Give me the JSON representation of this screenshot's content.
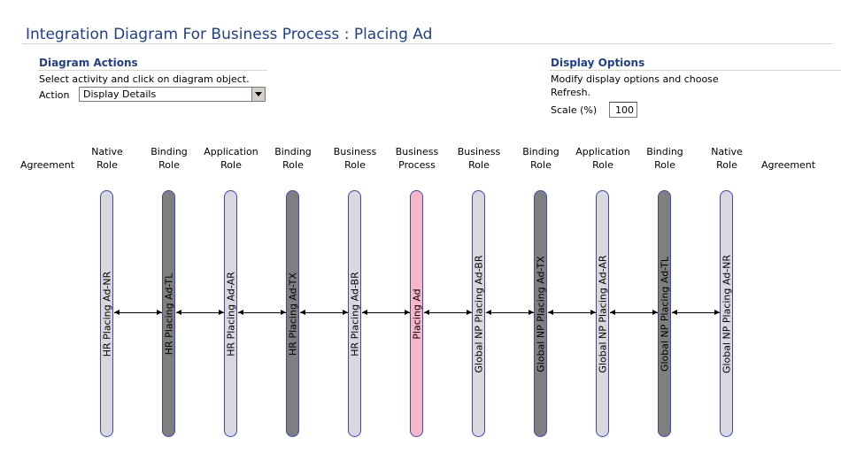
{
  "page": {
    "title": "Integration Diagram For Business Process : Placing Ad"
  },
  "diagram_actions": {
    "heading": "Diagram Actions",
    "instruction": "Select activity and click on diagram object.",
    "action_label": "Action",
    "action_value": "Display Details"
  },
  "display_options": {
    "heading": "Display Options",
    "instruction_line1": "Modify display options and choose",
    "instruction_line2": "Refresh.",
    "scale_label": "Scale (%)",
    "scale_value": "100"
  },
  "diagram": {
    "left_end_label": "Agreement",
    "right_end_label": "Agreement",
    "columns": [
      {
        "type1": "Native",
        "type2": "Role",
        "name": "HR Placing Ad-NR",
        "style": "gray"
      },
      {
        "type1": "Binding",
        "type2": "Role",
        "name": "HR Placing Ad-TL",
        "style": "dark"
      },
      {
        "type1": "Application",
        "type2": "Role",
        "name": "HR Placing Ad-AR",
        "style": "gray"
      },
      {
        "type1": "Binding",
        "type2": "Role",
        "name": "HR Placing Ad-TX",
        "style": "dark"
      },
      {
        "type1": "Business",
        "type2": "Role",
        "name": "HR Placing Ad-BR",
        "style": "gray"
      },
      {
        "type1": "Business",
        "type2": "Process",
        "name": "Placing Ad",
        "style": "pink"
      },
      {
        "type1": "Business",
        "type2": "Role",
        "name": "Global NP Placing Ad-BR",
        "style": "gray"
      },
      {
        "type1": "Binding",
        "type2": "Role",
        "name": "Global NP Placing Ad-TX",
        "style": "dark"
      },
      {
        "type1": "Application",
        "type2": "Role",
        "name": "Global NP Placing Ad-AR",
        "style": "gray"
      },
      {
        "type1": "Binding",
        "type2": "Role",
        "name": "Global NP Placing Ad-TL",
        "style": "dark"
      },
      {
        "type1": "Native",
        "type2": "Role",
        "name": "Global NP Placing Ad-NR",
        "style": "gray"
      }
    ]
  }
}
